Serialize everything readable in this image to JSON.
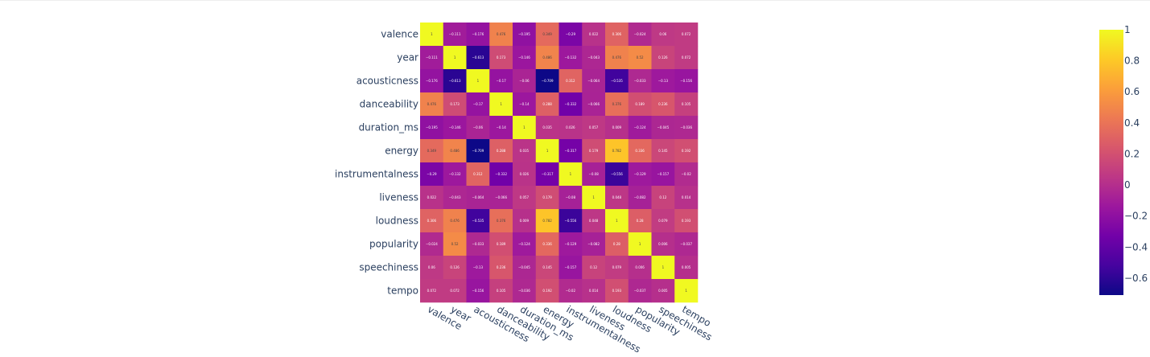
{
  "chart_data": {
    "type": "heatmap",
    "variables": [
      "valence",
      "year",
      "acousticness",
      "danceability",
      "duration_ms",
      "energy",
      "instrumentalness",
      "liveness",
      "loudness",
      "popularity",
      "speechiness",
      "tempo"
    ],
    "values": [
      [
        1,
        -0.111,
        -0.176,
        0.476,
        -0.195,
        0.349,
        -0.29,
        0.022,
        0.306,
        -0.024,
        0.06,
        0.072
      ],
      [
        -0.111,
        1,
        -0.613,
        0.173,
        -0.146,
        0.486,
        -0.132,
        -0.043,
        0.476,
        0.52,
        0.126,
        0.072
      ],
      [
        -0.176,
        -0.613,
        1,
        -0.17,
        -0.06,
        -0.709,
        0.312,
        -0.064,
        -0.535,
        -0.033,
        -0.13,
        -0.156
      ],
      [
        0.476,
        0.173,
        -0.17,
        1,
        -0.14,
        0.288,
        -0.332,
        -0.066,
        0.376,
        0.189,
        0.236,
        0.105
      ],
      [
        -0.195,
        -0.146,
        -0.06,
        -0.14,
        1,
        0.035,
        0.026,
        0.057,
        0.009,
        -0.124,
        -0.045,
        -0.036
      ],
      [
        0.349,
        0.486,
        -0.709,
        0.288,
        0.035,
        1,
        -0.317,
        0.179,
        0.782,
        0.336,
        0.145,
        0.192
      ],
      [
        -0.29,
        -0.132,
        0.312,
        -0.332,
        0.026,
        -0.317,
        1,
        -0.08,
        -0.556,
        -0.129,
        -0.157,
        -0.02
      ],
      [
        0.022,
        -0.043,
        -0.064,
        -0.066,
        0.057,
        0.179,
        -0.08,
        1,
        0.048,
        -0.082,
        0.12,
        0.014
      ],
      [
        0.306,
        0.476,
        -0.535,
        0.376,
        0.009,
        0.782,
        -0.556,
        0.048,
        1,
        0.28,
        0.079,
        0.193
      ],
      [
        -0.024,
        0.52,
        -0.033,
        0.189,
        -0.124,
        0.336,
        -0.129,
        -0.082,
        0.28,
        1,
        0.006,
        -0.037
      ],
      [
        0.06,
        0.126,
        -0.13,
        0.236,
        -0.045,
        0.145,
        -0.157,
        0.12,
        0.079,
        0.006,
        1,
        0.005
      ],
      [
        0.072,
        0.072,
        -0.156,
        0.105,
        -0.036,
        0.192,
        -0.02,
        0.014,
        0.193,
        -0.037,
        0.005,
        1
      ]
    ],
    "colorscale": [
      "#0d0887",
      "#46039f",
      "#7201a8",
      "#9c179e",
      "#bd3786",
      "#d8576b",
      "#ed7953",
      "#fb9f3a",
      "#fdca26",
      "#f0f921"
    ],
    "zmin": -0.709,
    "zmax": 1,
    "colorbar_ticks": [
      {
        "value": 1,
        "label": "1"
      },
      {
        "value": 0.8,
        "label": "0.8"
      },
      {
        "value": 0.6,
        "label": "0.6"
      },
      {
        "value": 0.4,
        "label": "0.4"
      },
      {
        "value": 0.2,
        "label": "0.2"
      },
      {
        "value": 0,
        "label": "0"
      },
      {
        "value": -0.2,
        "label": "−0.2"
      },
      {
        "value": -0.4,
        "label": "−0.4"
      },
      {
        "value": -0.6,
        "label": "−0.6"
      }
    ]
  }
}
